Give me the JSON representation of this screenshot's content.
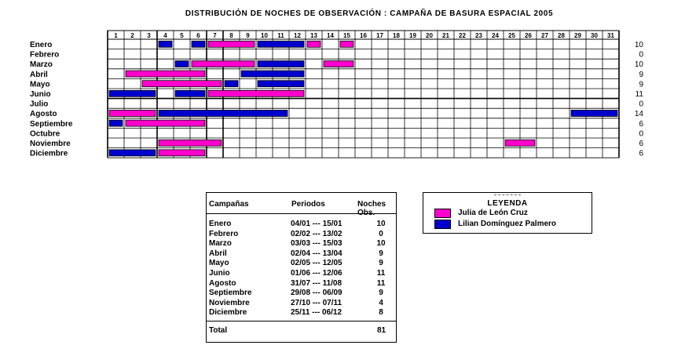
{
  "chart_data": {
    "type": "gantt",
    "title": "DISTRIBUCIÓN DE NOCHES DE OBSERVACIÓN : CAMPAÑA DE BASURA ESPACIAL 2005",
    "x_days": [
      "1",
      "2",
      "3",
      "4",
      "5",
      "6",
      "7",
      "8",
      "9",
      "10",
      "11",
      "12",
      "13",
      "14",
      "15",
      "16",
      "17",
      "18",
      "19",
      "20",
      "21",
      "22",
      "23",
      "24",
      "25",
      "26",
      "27",
      "28",
      "29",
      "30",
      "31"
    ],
    "months": [
      "Enero",
      "Febrero",
      "Marzo",
      "Abril",
      "Mayo",
      "Junio",
      "Julio",
      "Agosto",
      "Septiembre",
      "Octubre",
      "Noviembre",
      "Diciembre"
    ],
    "month_totals": [
      "10",
      "0",
      "10",
      "9",
      "9",
      "11",
      "0",
      "14",
      "6",
      "0",
      "6",
      "6"
    ],
    "colors": {
      "julia": "#ff00cc",
      "lilian": "#0000cc"
    },
    "series": [
      {
        "name": "Julia de León Cruz",
        "key": "julia"
      },
      {
        "name": "Lilian Domínguez Palmero",
        "key": "lilian"
      }
    ],
    "bars": [
      {
        "month": 0,
        "start": 4,
        "end": 4,
        "series": "lilian"
      },
      {
        "month": 0,
        "start": 6,
        "end": 6,
        "series": "lilian"
      },
      {
        "month": 0,
        "start": 7,
        "end": 9,
        "series": "julia"
      },
      {
        "month": 0,
        "start": 10,
        "end": 12,
        "series": "lilian"
      },
      {
        "month": 0,
        "start": 13,
        "end": 13,
        "series": "julia"
      },
      {
        "month": 0,
        "start": 15,
        "end": 15,
        "series": "julia"
      },
      {
        "month": 2,
        "start": 5,
        "end": 5,
        "series": "lilian"
      },
      {
        "month": 2,
        "start": 6,
        "end": 9,
        "series": "julia"
      },
      {
        "month": 2,
        "start": 10,
        "end": 12,
        "series": "lilian"
      },
      {
        "month": 2,
        "start": 14,
        "end": 15,
        "series": "julia"
      },
      {
        "month": 3,
        "start": 2,
        "end": 6,
        "series": "julia"
      },
      {
        "month": 3,
        "start": 9,
        "end": 12,
        "series": "lilian"
      },
      {
        "month": 4,
        "start": 3,
        "end": 7,
        "series": "julia"
      },
      {
        "month": 4,
        "start": 8,
        "end": 8,
        "series": "lilian"
      },
      {
        "month": 4,
        "start": 10,
        "end": 12,
        "series": "lilian"
      },
      {
        "month": 5,
        "start": 1,
        "end": 3,
        "series": "lilian"
      },
      {
        "month": 5,
        "start": 5,
        "end": 6,
        "series": "lilian"
      },
      {
        "month": 5,
        "start": 7,
        "end": 12,
        "series": "julia"
      },
      {
        "month": 7,
        "start": 1,
        "end": 3,
        "series": "julia"
      },
      {
        "month": 7,
        "start": 4,
        "end": 11,
        "series": "lilian"
      },
      {
        "month": 7,
        "start": 29,
        "end": 31,
        "series": "lilian"
      },
      {
        "month": 8,
        "start": 1,
        "end": 1,
        "series": "lilian"
      },
      {
        "month": 8,
        "start": 2,
        "end": 6,
        "series": "julia"
      },
      {
        "month": 10,
        "start": 4,
        "end": 7,
        "series": "julia"
      },
      {
        "month": 10,
        "start": 25,
        "end": 26,
        "series": "julia"
      },
      {
        "month": 11,
        "start": 1,
        "end": 3,
        "series": "lilian"
      },
      {
        "month": 11,
        "start": 4,
        "end": 6,
        "series": "julia"
      }
    ]
  },
  "summary_table": {
    "headers": [
      "Campañas",
      "Periodos",
      "Noches Obs."
    ],
    "rows": [
      {
        "campaign": "Enero",
        "period": "04/01 --- 15/01",
        "nights": "10"
      },
      {
        "campaign": "Febrero",
        "period": "02/02 --- 13/02",
        "nights": "0"
      },
      {
        "campaign": "Marzo",
        "period": "03/03 --- 15/03",
        "nights": "10"
      },
      {
        "campaign": "Abril",
        "period": "02/04 --- 13/04",
        "nights": "9"
      },
      {
        "campaign": "Mayo",
        "period": "02/05 --- 12/05",
        "nights": "9"
      },
      {
        "campaign": "Junio",
        "period": "01/06 --- 12/06",
        "nights": "11"
      },
      {
        "campaign": "Agosto",
        "period": "31/07 --- 11/08",
        "nights": "11"
      },
      {
        "campaign": "Septiembre",
        "period": "29/08 --- 06/09",
        "nights": "9"
      },
      {
        "campaign": "Noviembre",
        "period": "27/10 --- 07/11",
        "nights": "4"
      },
      {
        "campaign": "Diciembre",
        "period": "25/11 --- 06/12",
        "nights": "8"
      }
    ],
    "total_label": "Total",
    "total_value": "81"
  },
  "legend": {
    "title": "LEYENDA",
    "items": [
      {
        "label": "Julia de León Cruz",
        "color": "#ff00cc"
      },
      {
        "label": "Lilian Domínguez Palmero",
        "color": "#0000cc"
      }
    ]
  }
}
